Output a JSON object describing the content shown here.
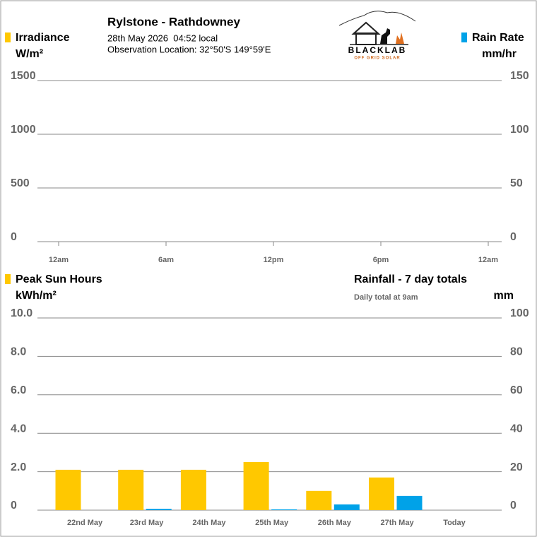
{
  "header": {
    "title": "Rylstone - Rathdowney",
    "date": "28th May 2026  04:52 local",
    "location": "Observation Location: 32°50'S 149°59'E",
    "logo": {
      "name": "BLACKLAB",
      "tagline": "OFF GRID SOLAR"
    }
  },
  "chart_data": [
    {
      "type": "line",
      "y_unit": "W/m²",
      "y2_unit": "mm/hr",
      "x": [],
      "xlim": [
        0,
        24
      ],
      "xticks": [
        {
          "value": 0,
          "label": "12am"
        },
        {
          "value": 6,
          "label": "6am"
        },
        {
          "value": 12,
          "label": "12pm"
        },
        {
          "value": 18,
          "label": "6pm"
        },
        {
          "value": 24,
          "label": "12am"
        }
      ],
      "ylim": [
        0,
        1500
      ],
      "yticks": [
        0,
        500,
        1000,
        1500
      ],
      "y2lim": [
        0,
        150
      ],
      "y2ticks": [
        0,
        50,
        100,
        150
      ],
      "series": [
        {
          "name": "Irradiance",
          "color": "#ffc800",
          "values": []
        },
        {
          "name": "Rain Rate",
          "color": "#00a2e8",
          "values": [],
          "axis": "y2"
        }
      ],
      "grid": true
    },
    {
      "type": "bar",
      "title": "Rainfall - 7 day totals",
      "subtitle": "Daily total at 9am",
      "y_unit": "kWh/m²",
      "y2_unit": "mm",
      "categories": [
        "22nd May",
        "23rd May",
        "24th May",
        "25th May",
        "26th May",
        "27th May",
        "Today"
      ],
      "ylim": [
        0,
        10
      ],
      "yticks": [
        0,
        {
          "value": 2,
          "label": "2.0"
        },
        {
          "value": 4,
          "label": "4.0"
        },
        {
          "value": 6,
          "label": "6.0"
        },
        {
          "value": 8,
          "label": "8.0"
        },
        {
          "value": 10,
          "label": "10.0"
        }
      ],
      "y2lim": [
        0,
        100
      ],
      "y2ticks": [
        0,
        20,
        40,
        60,
        80,
        100
      ],
      "series": [
        {
          "name": "Peak Sun Hours",
          "color": "#ffc800",
          "values": [
            2.1,
            2.1,
            2.1,
            2.5,
            1.0,
            1.7,
            0
          ]
        },
        {
          "color": "#00a2e8",
          "values": [
            0,
            0.7,
            0,
            0.4,
            3.0,
            7.4,
            0
          ],
          "axis": "y2"
        }
      ],
      "grid": true
    }
  ]
}
